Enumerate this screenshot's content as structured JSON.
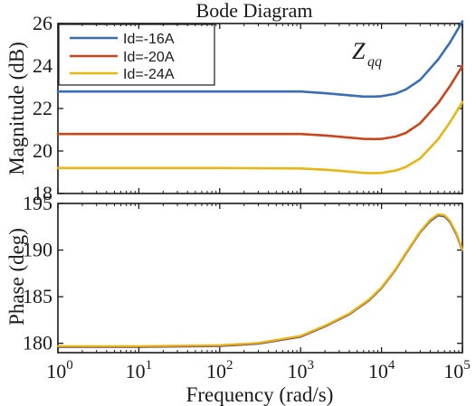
{
  "chart_data": [
    {
      "type": "line",
      "panel": "magnitude",
      "title": "Bode Diagram",
      "xlabel": "",
      "ylabel": "Magnitude (dB)",
      "xscale": "log",
      "xlim": [
        1,
        100000
      ],
      "ylim": [
        18,
        26
      ],
      "yticks": [
        18,
        20,
        22,
        24,
        26
      ],
      "ytick_labels": [
        "18",
        "20",
        "22",
        "24",
        "26"
      ],
      "annotation": {
        "main": "Z",
        "sub": "qq"
      },
      "legend": {
        "position": "top-left",
        "entries": [
          "Id=-16A",
          "Id=-20A",
          "Id=-24A"
        ]
      },
      "series": [
        {
          "name": "Id=-16A",
          "color": "#3a6db3",
          "x": [
            1,
            10,
            100,
            1000,
            2000,
            4000,
            6000,
            8000,
            10000,
            15000,
            20000,
            30000,
            50000,
            70000,
            100000
          ],
          "y": [
            22.8,
            22.8,
            22.8,
            22.8,
            22.72,
            22.62,
            22.56,
            22.56,
            22.58,
            22.7,
            22.9,
            23.35,
            24.3,
            25.1,
            26.1
          ]
        },
        {
          "name": "Id=-20A",
          "color": "#c8461c",
          "x": [
            1,
            10,
            100,
            1000,
            2000,
            4000,
            6000,
            8000,
            10000,
            15000,
            20000,
            30000,
            50000,
            70000,
            100000
          ],
          "y": [
            20.8,
            20.8,
            20.8,
            20.8,
            20.73,
            20.63,
            20.57,
            20.56,
            20.57,
            20.68,
            20.85,
            21.3,
            22.25,
            23.05,
            24.0
          ]
        },
        {
          "name": "Id=-24A",
          "color": "#e6b614",
          "x": [
            1,
            10,
            100,
            1000,
            2000,
            4000,
            6000,
            8000,
            10000,
            15000,
            20000,
            30000,
            50000,
            70000,
            100000
          ],
          "y": [
            19.2,
            19.2,
            19.2,
            19.18,
            19.12,
            19.03,
            18.97,
            18.96,
            18.97,
            19.08,
            19.25,
            19.65,
            20.55,
            21.35,
            22.3
          ]
        }
      ]
    },
    {
      "type": "line",
      "panel": "phase",
      "title": "",
      "xlabel": "Frequency (rad/s)",
      "ylabel": "Phase (deg)",
      "xscale": "log",
      "xlim": [
        1,
        100000
      ],
      "ylim": [
        179,
        195
      ],
      "yticks": [
        180,
        185,
        190,
        195
      ],
      "ytick_labels": [
        "180",
        "185",
        "190",
        "195"
      ],
      "xticks": [
        {
          "base": "10",
          "exp": "0"
        },
        {
          "base": "10",
          "exp": "1"
        },
        {
          "base": "10",
          "exp": "2"
        },
        {
          "base": "10",
          "exp": "3"
        },
        {
          "base": "10",
          "exp": "4"
        },
        {
          "base": "10",
          "exp": "5"
        }
      ],
      "series": [
        {
          "name": "Id=-16A",
          "color": "#3a6db3",
          "x": [
            1,
            10,
            100,
            300,
            1000,
            2000,
            4000,
            7000,
            10000,
            15000,
            20000,
            30000,
            40000,
            50000,
            60000,
            70000,
            85000,
            100000
          ],
          "y": [
            179.6,
            179.6,
            179.7,
            179.95,
            180.7,
            181.8,
            183.1,
            184.6,
            185.9,
            187.9,
            189.6,
            191.9,
            193.1,
            193.7,
            193.6,
            193.0,
            191.6,
            189.9
          ]
        },
        {
          "name": "Id=-20A",
          "color": "#c8461c",
          "x": [
            1,
            10,
            100,
            300,
            1000,
            2000,
            4000,
            7000,
            10000,
            15000,
            20000,
            30000,
            40000,
            50000,
            60000,
            70000,
            85000,
            100000
          ],
          "y": [
            179.65,
            179.65,
            179.75,
            180.0,
            180.75,
            181.85,
            183.15,
            184.65,
            185.95,
            187.95,
            189.65,
            191.95,
            193.2,
            193.8,
            193.7,
            193.1,
            191.7,
            190.0
          ]
        },
        {
          "name": "Id=-24A",
          "color": "#e6b614",
          "x": [
            1,
            10,
            100,
            300,
            1000,
            2000,
            4000,
            7000,
            10000,
            15000,
            20000,
            30000,
            40000,
            50000,
            60000,
            70000,
            85000,
            100000
          ],
          "y": [
            179.7,
            179.7,
            179.8,
            180.05,
            180.8,
            181.9,
            183.2,
            184.7,
            186.0,
            188.0,
            189.7,
            192.0,
            193.25,
            193.85,
            193.75,
            193.15,
            191.75,
            190.05
          ]
        }
      ]
    }
  ]
}
